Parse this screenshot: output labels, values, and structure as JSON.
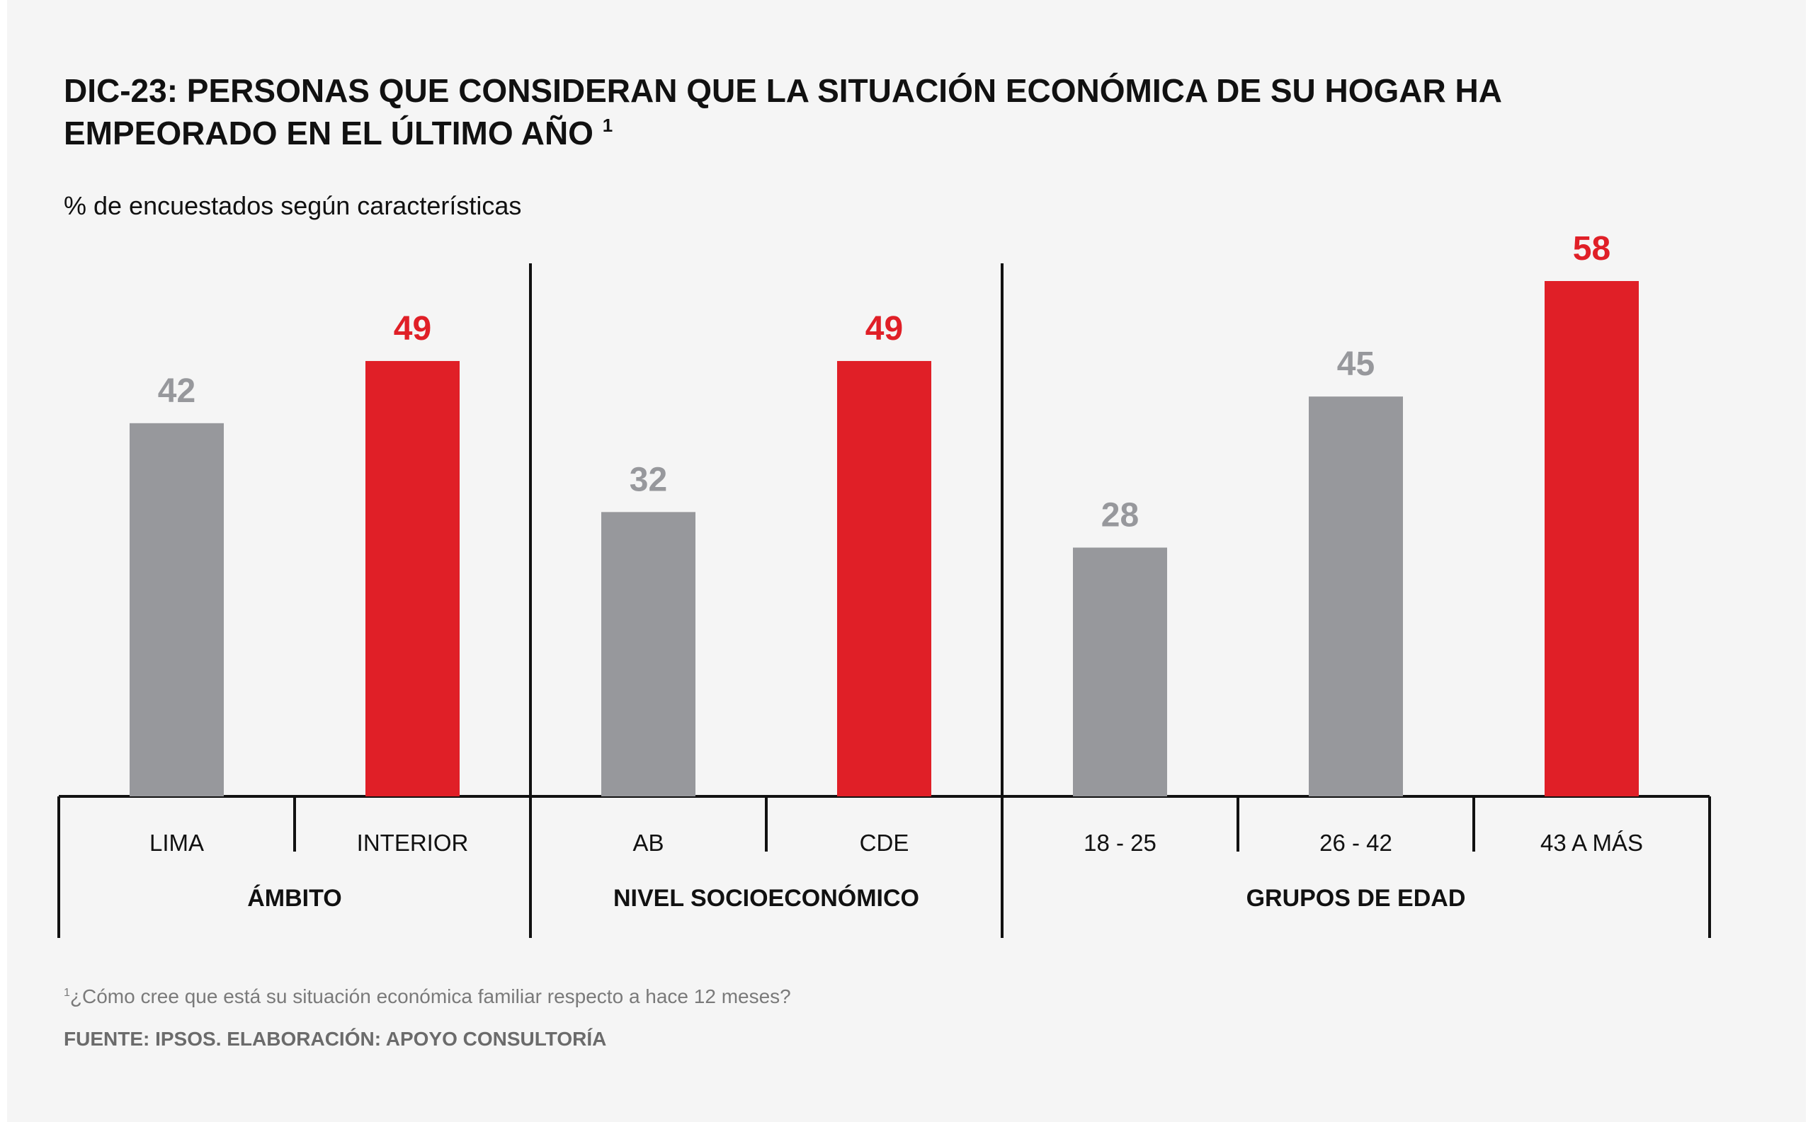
{
  "title": {
    "line1": "DIC-23: PERSONAS QUE CONSIDERAN QUE LA SITUACIÓN ECONÓMICA DE SU HOGAR HA",
    "line2": "EMPEORADO EN EL ÚLTIMO AÑO",
    "footnote_marker": "1"
  },
  "subtitle": "% de encuestados según características",
  "footnote": {
    "marker": "1",
    "text": "¿Cómo cree que está su situación económica familiar respecto a hace 12 meses?"
  },
  "source": "FUENTE: IPSOS. ELABORACIÓN: APOYO CONSULTORÍA",
  "colors": {
    "gray_bar": "#97989c",
    "red_bar": "#e01f27",
    "gray_label": "#97989c",
    "red_label": "#e01f27",
    "axis": "#111111"
  },
  "chart_data": {
    "type": "bar",
    "title": "DIC-23: PERSONAS QUE CONSIDERAN QUE LA SITUACIÓN ECONÓMICA DE SU HOGAR HA EMPEORADO EN EL ÚLTIMO AÑO",
    "subtitle": "% de encuestados según características",
    "ylim": [
      0,
      58
    ],
    "grid": false,
    "groups": [
      {
        "name": "ÁMBITO",
        "categories": [
          "LIMA",
          "INTERIOR"
        ],
        "values": [
          42,
          49
        ],
        "highlight": [
          false,
          true
        ]
      },
      {
        "name": "NIVEL SOCIOECONÓMICO",
        "categories": [
          "AB",
          "CDE"
        ],
        "values": [
          32,
          49
        ],
        "highlight": [
          false,
          true
        ]
      },
      {
        "name": "GRUPOS DE EDAD",
        "categories": [
          "18 - 25",
          "26 - 42",
          "43 A MÁS"
        ],
        "values": [
          28,
          45,
          58
        ],
        "highlight": [
          false,
          false,
          true
        ]
      }
    ]
  }
}
